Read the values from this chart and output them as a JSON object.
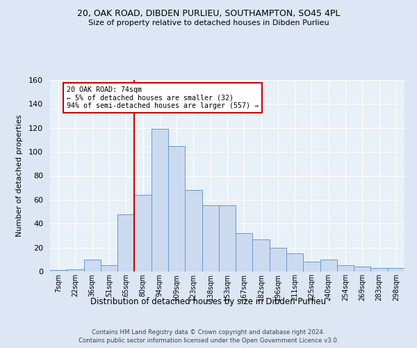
{
  "title1": "20, OAK ROAD, DIBDEN PURLIEU, SOUTHAMPTON, SO45 4PL",
  "title2": "Size of property relative to detached houses in Dibden Purlieu",
  "xlabel": "Distribution of detached houses by size in Dibden Purlieu",
  "ylabel": "Number of detached properties",
  "bin_labels": [
    "7sqm",
    "22sqm",
    "36sqm",
    "51sqm",
    "65sqm",
    "80sqm",
    "94sqm",
    "109sqm",
    "123sqm",
    "138sqm",
    "153sqm",
    "167sqm",
    "182sqm",
    "196sqm",
    "211sqm",
    "225sqm",
    "240sqm",
    "254sqm",
    "269sqm",
    "283sqm",
    "298sqm"
  ],
  "bar_heights": [
    1,
    2,
    10,
    5,
    48,
    64,
    119,
    105,
    68,
    55,
    55,
    32,
    27,
    20,
    15,
    8,
    10,
    5,
    4,
    3,
    3
  ],
  "bar_color": "#ccdaf0",
  "bar_edge_color": "#6699cc",
  "vline_x": 4.5,
  "vline_color": "#cc0000",
  "annotation_text": "20 OAK ROAD: 74sqm\n← 5% of detached houses are smaller (32)\n94% of semi-detached houses are larger (557) →",
  "annotation_box_color": "#ffffff",
  "annotation_box_edge_color": "#cc0000",
  "ylim": [
    0,
    160
  ],
  "yticks": [
    0,
    20,
    40,
    60,
    80,
    100,
    120,
    140,
    160
  ],
  "footnote1": "Contains HM Land Registry data © Crown copyright and database right 2024.",
  "footnote2": "Contains public sector information licensed under the Open Government Licence v3.0.",
  "bg_color": "#dce6f5",
  "plot_bg_color": "#e8f0f8"
}
